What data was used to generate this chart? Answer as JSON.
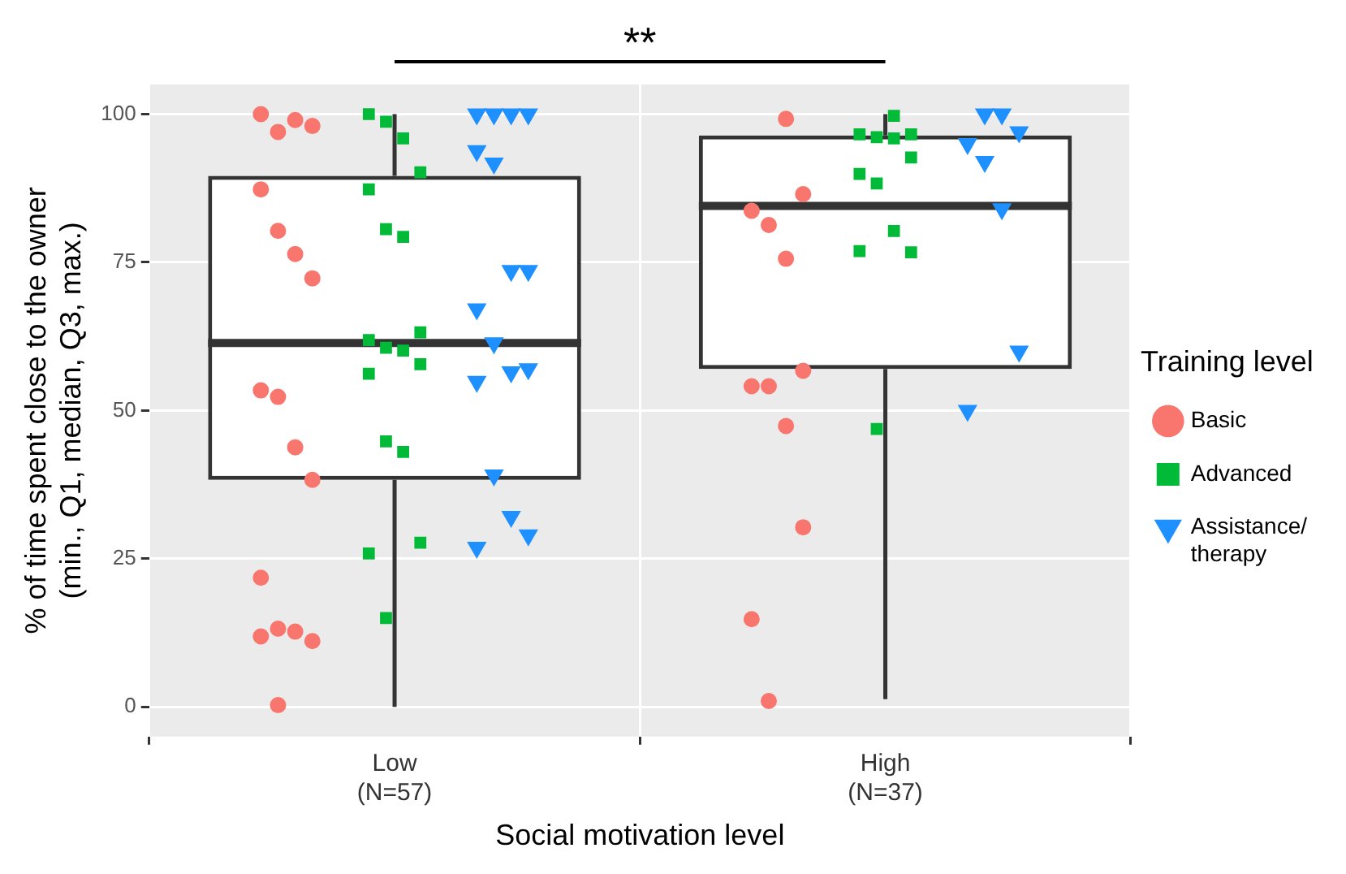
{
  "chart_data": {
    "type": "box",
    "xlabel": "Social motivation level",
    "ylabel": "% of time spent close to the owner\n(min., Q1, median, Q3, max.)",
    "legend_title": "Training level",
    "legend": "right",
    "grid": true,
    "categories": [
      "Low\n(N=57)",
      "High\n(N=37)"
    ],
    "ylim": [
      -5,
      105
    ],
    "yticks": [
      0,
      25,
      50,
      75,
      100
    ],
    "annotations": [
      "**"
    ],
    "boxes": [
      {
        "low": 0,
        "q1": 38.3,
        "median": 61.4,
        "q3": 89.6,
        "high": 100
      },
      {
        "low": 1.3,
        "q1": 57,
        "median": 84.5,
        "q3": 96.4,
        "high": 100
      }
    ],
    "series": [
      {
        "name": "Basic",
        "type": "scatter",
        "marker": "circle",
        "color": "#f8766d",
        "x": [
          "Low\n(N=57)",
          "Low\n(N=57)",
          "Low\n(N=57)",
          "Low\n(N=57)",
          "Low\n(N=57)",
          "Low\n(N=57)",
          "Low\n(N=57)",
          "Low\n(N=57)",
          "Low\n(N=57)",
          "Low\n(N=57)",
          "Low\n(N=57)",
          "Low\n(N=57)",
          "Low\n(N=57)",
          "Low\n(N=57)",
          "Low\n(N=57)",
          "Low\n(N=57)",
          "Low\n(N=57)",
          "Low\n(N=57)",
          "High\n(N=37)",
          "High\n(N=37)",
          "High\n(N=37)",
          "High\n(N=37)",
          "High\n(N=37)",
          "High\n(N=37)",
          "High\n(N=37)",
          "High\n(N=37)",
          "High\n(N=37)",
          "High\n(N=37)",
          "High\n(N=37)",
          "High\n(N=37)"
        ],
        "values": [
          100,
          97,
          99,
          98,
          87.3,
          80.3,
          76.4,
          72.3,
          53.4,
          52.3,
          43.8,
          38.3,
          21.8,
          13.2,
          12.7,
          11.1,
          11.9,
          0.3,
          99.2,
          86.5,
          83.7,
          81.3,
          75.6,
          56.7,
          54.1,
          54.1,
          47.4,
          30.3,
          14.8,
          1
        ]
      },
      {
        "name": "Advanced",
        "type": "scatter",
        "marker": "square",
        "color": "#00ba38",
        "x": [
          "Low\n(N=57)",
          "Low\n(N=57)",
          "Low\n(N=57)",
          "Low\n(N=57)",
          "Low\n(N=57)",
          "Low\n(N=57)",
          "Low\n(N=57)",
          "Low\n(N=57)",
          "Low\n(N=57)",
          "Low\n(N=57)",
          "Low\n(N=57)",
          "Low\n(N=57)",
          "Low\n(N=57)",
          "Low\n(N=57)",
          "Low\n(N=57)",
          "Low\n(N=57)",
          "Low\n(N=57)",
          "Low\n(N=57)",
          "High\n(N=37)",
          "High\n(N=37)",
          "High\n(N=37)",
          "High\n(N=37)",
          "High\n(N=37)",
          "High\n(N=37)",
          "High\n(N=37)",
          "High\n(N=37)",
          "High\n(N=37)",
          "High\n(N=37)",
          "High\n(N=37)",
          "High\n(N=37)"
        ],
        "values": [
          100,
          98.7,
          95.9,
          90.2,
          87.3,
          80.6,
          79.3,
          63.2,
          61.9,
          60.6,
          60.1,
          57.8,
          56.2,
          44.8,
          43,
          27.7,
          25.9,
          15,
          99.7,
          96.6,
          96.6,
          96.1,
          95.9,
          92.7,
          89.9,
          88.3,
          80.3,
          76.7,
          76.9,
          46.9
        ]
      },
      {
        "name": "Assistance/\ntherapy",
        "type": "scatter",
        "marker": "triangle",
        "color": "#1e90ff",
        "x": [
          "Low\n(N=57)",
          "Low\n(N=57)",
          "Low\n(N=57)",
          "Low\n(N=57)",
          "Low\n(N=57)",
          "Low\n(N=57)",
          "Low\n(N=57)",
          "Low\n(N=57)",
          "Low\n(N=57)",
          "Low\n(N=57)",
          "Low\n(N=57)",
          "Low\n(N=57)",
          "Low\n(N=57)",
          "Low\n(N=57)",
          "Low\n(N=57)",
          "Low\n(N=57)",
          "Low\n(N=57)",
          "High\n(N=37)",
          "High\n(N=37)",
          "High\n(N=37)",
          "High\n(N=37)",
          "High\n(N=37)",
          "High\n(N=37)",
          "High\n(N=37)",
          "High\n(N=37)"
        ],
        "values": [
          100,
          100,
          100,
          100,
          93.8,
          91.7,
          73.6,
          73.6,
          67.1,
          61.4,
          56.5,
          57,
          54.9,
          39.1,
          32.1,
          29,
          26.9,
          100,
          100,
          97,
          95,
          92,
          84,
          60,
          50
        ]
      }
    ]
  }
}
